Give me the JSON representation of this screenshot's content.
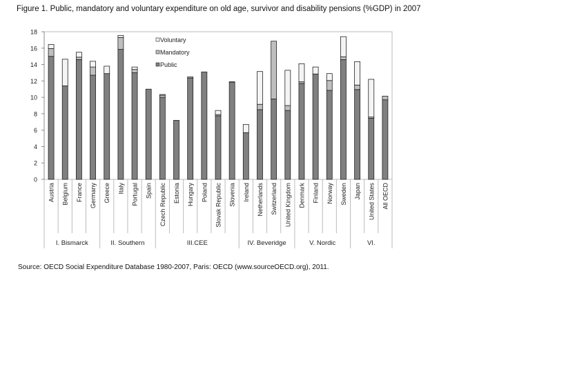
{
  "title": "Figure 1.  Public, mandatory and voluntary expenditure on old age, survivor and disability pensions (%GDP) in 2007",
  "source": "Source: OECD Social Expenditure Database 1980-2007, Paris: OECD (www.sourceOECD.org), 2011.",
  "chart_data": {
    "type": "bar",
    "stacked": true,
    "title": "Figure 1.  Public, mandatory and voluntary expenditure on old age, survivor and disability pensions (%GDP) in 2007",
    "xlabel": "",
    "ylabel": "",
    "ylim": [
      0,
      18
    ],
    "yticks": [
      0,
      2,
      4,
      6,
      8,
      10,
      12,
      14,
      16,
      18
    ],
    "legend_position": "top-center",
    "categories": [
      "Austria",
      "Belgium",
      "France",
      "Germany",
      "Greece",
      "Italy",
      "Portugal",
      "Spain",
      "Czech Republic",
      "Estonia",
      "Hungary",
      "Poland",
      "Slovak Republic",
      "Slovenia",
      "Ireland",
      "Netherlands",
      "Switzerland",
      "United Kingdom",
      "Denmark",
      "Finland",
      "Norway",
      "Sweden",
      "Japan",
      "United States",
      "All OECD"
    ],
    "groups": [
      {
        "label": "I. Bismarck",
        "count": 4
      },
      {
        "label": "II. Southern",
        "count": 4
      },
      {
        "label": "III.CEE",
        "count": 6
      },
      {
        "label": "IV. Beveridge",
        "count": 4
      },
      {
        "label": "V. Nordic",
        "count": 4
      },
      {
        "label": "VI.",
        "count": 3
      }
    ],
    "series": [
      {
        "name": "Public",
        "color": "#808080",
        "values": [
          15.0,
          11.4,
          14.6,
          12.7,
          12.9,
          15.85,
          13.0,
          11.0,
          10.0,
          7.2,
          12.35,
          13.1,
          7.75,
          11.85,
          5.7,
          8.5,
          9.8,
          8.4,
          11.7,
          12.85,
          10.85,
          14.6,
          10.95,
          7.45,
          9.7
        ]
      },
      {
        "name": "Mandatory",
        "color": "#bfbfbf",
        "values": [
          0.95,
          0,
          0.3,
          1.0,
          0,
          1.45,
          0.4,
          0,
          0.25,
          0,
          0.15,
          0,
          0.15,
          0.05,
          0,
          0.65,
          7.05,
          0.6,
          0.2,
          0,
          1.2,
          0.35,
          0.55,
          0.15,
          0.45
        ]
      },
      {
        "name": "Voluntary",
        "color": "#f4f4f4",
        "values": [
          0.5,
          3.25,
          0.6,
          0.7,
          0.9,
          0.25,
          0.3,
          0,
          0.1,
          0,
          0,
          0,
          0.5,
          0,
          1.0,
          4.0,
          0,
          4.3,
          2.2,
          0.85,
          0.85,
          2.45,
          2.85,
          4.6,
          0
        ]
      }
    ]
  }
}
